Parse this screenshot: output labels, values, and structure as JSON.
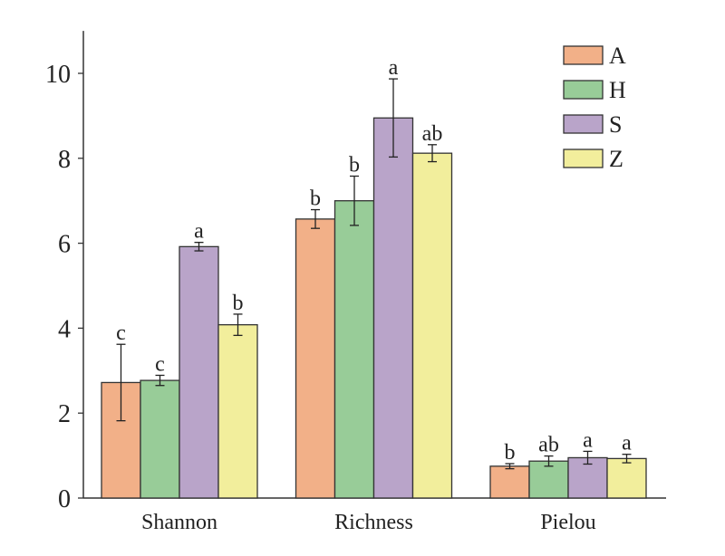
{
  "chart_data": {
    "type": "bar",
    "title": "",
    "xlabel": "",
    "ylabel": "",
    "ylim": [
      0,
      11
    ],
    "yticks": [
      0,
      2,
      4,
      6,
      8,
      10
    ],
    "categories": [
      "Shannon",
      "Richness",
      "Pielou"
    ],
    "legend_position": "top-right",
    "series": [
      {
        "name": "A",
        "color": "#f2b088",
        "values": [
          2.72,
          6.57,
          0.75
        ],
        "errors": [
          0.9,
          0.22,
          0.06
        ],
        "letters": [
          "c",
          "b",
          "b"
        ]
      },
      {
        "name": "H",
        "color": "#98cc98",
        "values": [
          2.77,
          7.0,
          0.87
        ],
        "errors": [
          0.12,
          0.58,
          0.12
        ],
        "letters": [
          "c",
          "b",
          "ab"
        ]
      },
      {
        "name": "S",
        "color": "#b9a4c9",
        "values": [
          5.92,
          8.95,
          0.95
        ],
        "errors": [
          0.1,
          0.92,
          0.15
        ],
        "letters": [
          "a",
          "a",
          "a"
        ]
      },
      {
        "name": "Z",
        "color": "#f2ee9c",
        "values": [
          4.08,
          8.12,
          0.93
        ],
        "errors": [
          0.25,
          0.2,
          0.1
        ],
        "letters": [
          "b",
          "ab",
          "a"
        ]
      }
    ]
  }
}
